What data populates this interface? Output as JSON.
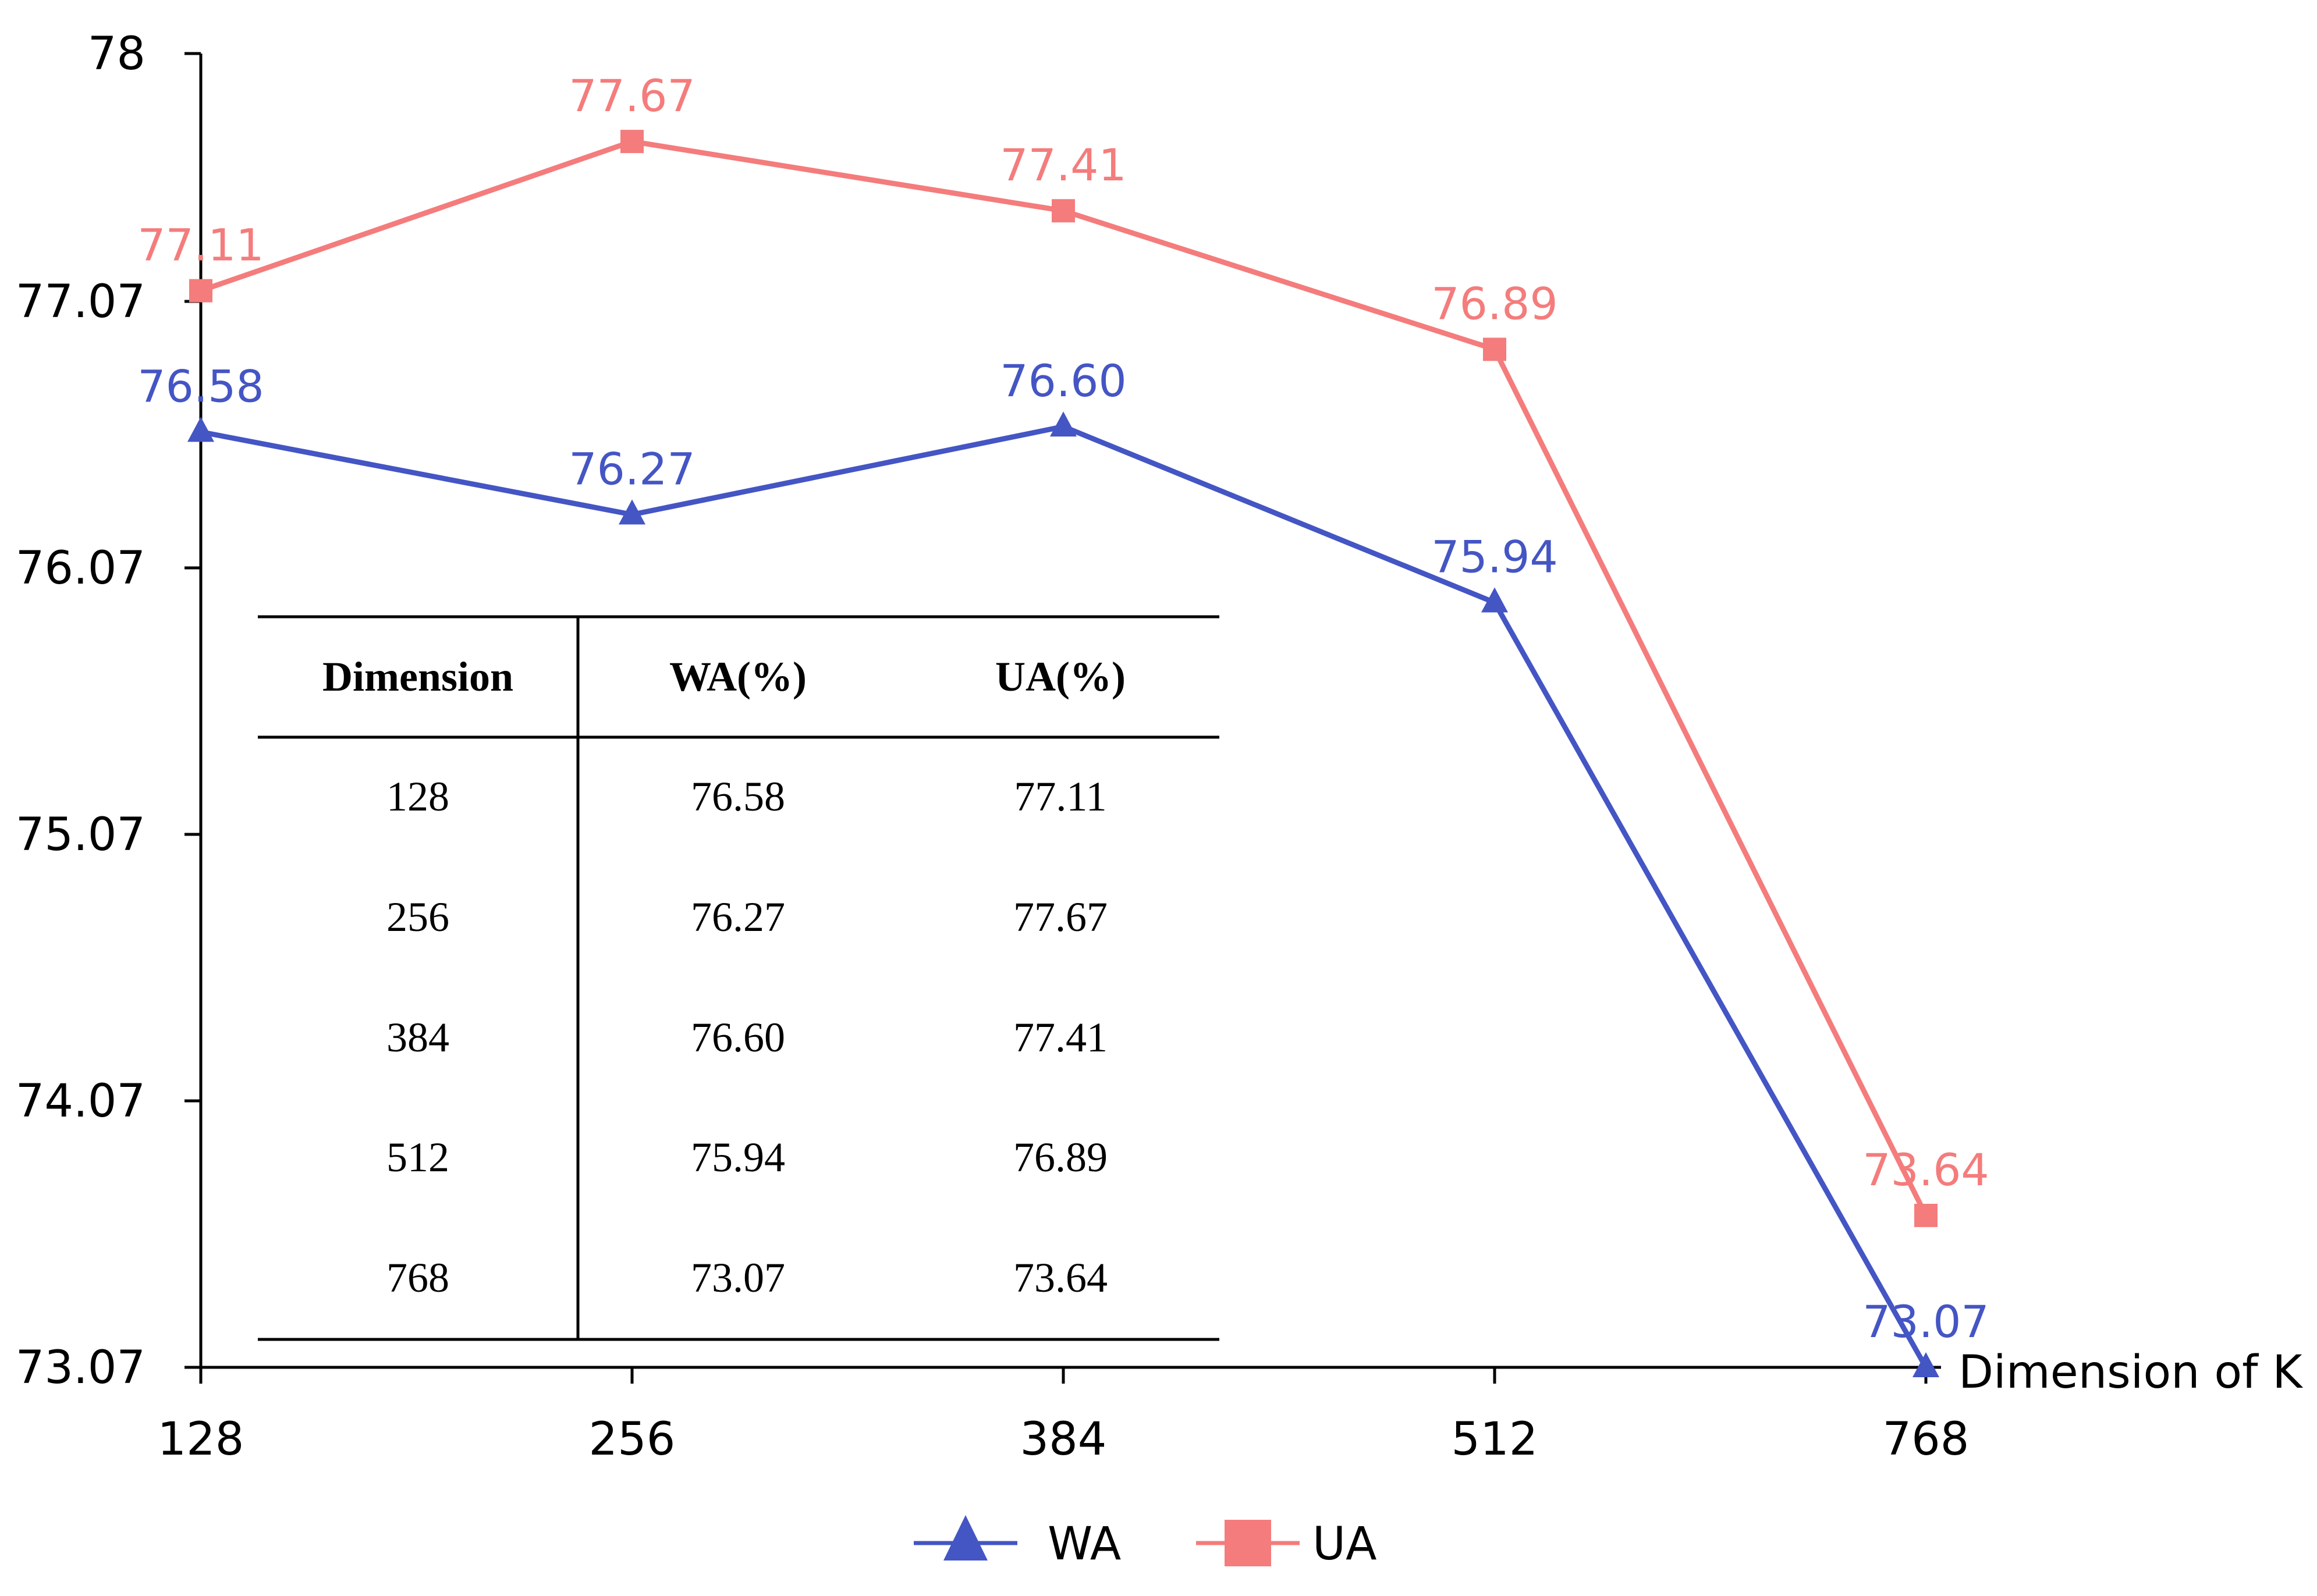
{
  "chart_data": {
    "type": "line",
    "categories": [
      "128",
      "256",
      "384",
      "512",
      "768"
    ],
    "x": [
      128,
      256,
      384,
      512,
      768
    ],
    "xlabel": "Dimension of K",
    "ylabel": "",
    "ylim": [
      73.07,
      78
    ],
    "yticks": [
      "73.07",
      "74.07",
      "75.07",
      "76.07",
      "77.07",
      "78"
    ],
    "grid": false,
    "legend_position": "bottom",
    "series": [
      {
        "name": "WA",
        "marker": "triangle",
        "color": "#4455c4",
        "values": [
          76.58,
          76.27,
          76.6,
          75.94,
          73.07
        ],
        "labels": [
          "76.58",
          "76.27",
          "76.60",
          "75.94",
          "73.07"
        ]
      },
      {
        "name": "UA",
        "marker": "square",
        "color": "#f47c7c",
        "values": [
          77.11,
          77.67,
          77.41,
          76.89,
          73.64
        ],
        "labels": [
          "77.11",
          "77.67",
          "77.41",
          "76.89",
          "73.64"
        ]
      }
    ],
    "table": {
      "headers": [
        "Dimension",
        "WA(%)",
        "UA(%)"
      ],
      "rows": [
        [
          "128",
          "76.58",
          "77.11"
        ],
        [
          "256",
          "76.27",
          "77.67"
        ],
        [
          "384",
          "76.60",
          "77.41"
        ],
        [
          "512",
          "75.94",
          "76.89"
        ],
        [
          "768",
          "73.07",
          "73.64"
        ]
      ]
    }
  }
}
